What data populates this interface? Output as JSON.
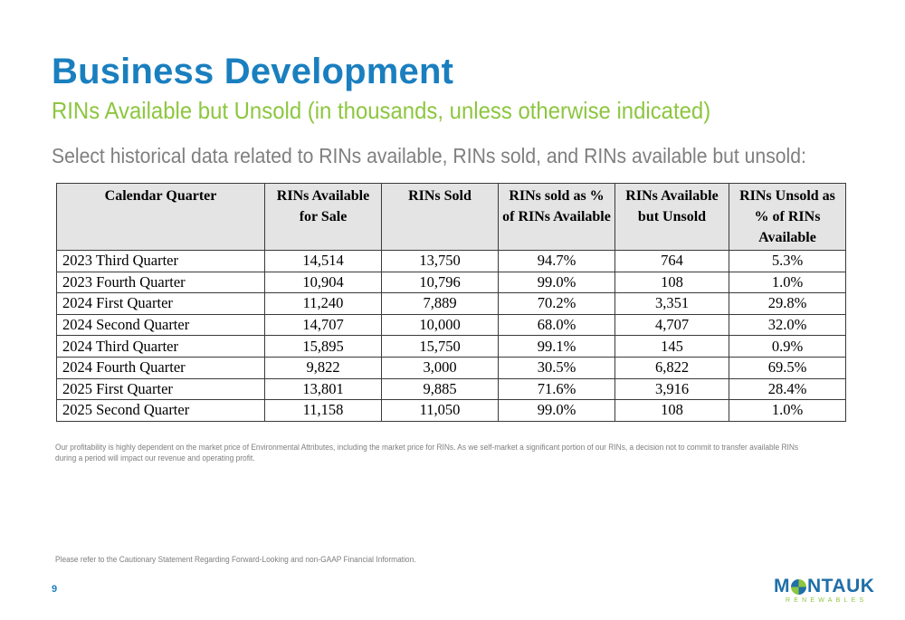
{
  "slide": {
    "title": "Business Development",
    "subtitle": "RINs Available but Unsold (in thousands, unless otherwise indicated)",
    "intro": "Select historical data related to RINs available, RINs sold, and RINs available but unsold:",
    "footnote": "Our profitability is highly dependent on the market price of Environmental Attributes, including the market price for RINs. As we self-market a significant portion of our RINs, a decision not to commit to transfer available RINs during a period will impact our revenue and operating profit.",
    "disclaimer": "Please refer to the Cautionary Statement Regarding Forward-Looking and non-GAAP Financial Information.",
    "page_number": "9"
  },
  "table": {
    "headers": [
      "Calendar Quarter",
      "RINs Available for Sale",
      "RINs Sold",
      "RINs sold as % of RINs Available",
      "RINs Available but Unsold",
      "RINs Unsold as % of RINs Available"
    ],
    "rows": [
      [
        "2023 Third Quarter",
        "14,514",
        "13,750",
        "94.7%",
        "764",
        "5.3%"
      ],
      [
        "2023 Fourth Quarter",
        "10,904",
        "10,796",
        "99.0%",
        "108",
        "1.0%"
      ],
      [
        "2024 First Quarter",
        "11,240",
        "7,889",
        "70.2%",
        "3,351",
        "29.8%"
      ],
      [
        "2024 Second Quarter",
        "14,707",
        "10,000",
        "68.0%",
        "4,707",
        "32.0%"
      ],
      [
        "2024 Third Quarter",
        "15,895",
        "15,750",
        "99.1%",
        "145",
        "0.9%"
      ],
      [
        "2024 Fourth Quarter",
        "9,822",
        "3,000",
        "30.5%",
        "6,822",
        "69.5%"
      ],
      [
        "2025 First Quarter",
        "13,801",
        "9,885",
        "71.6%",
        "3,916",
        "28.4%"
      ],
      [
        "2025 Second Quarter",
        "11,158",
        "11,050",
        "99.0%",
        "108",
        "1.0%"
      ]
    ]
  },
  "logo": {
    "word_left": "M",
    "word_right": "NTAUK",
    "tagline": "RENEWABLES"
  },
  "colors": {
    "title_blue": "#1a7fbf",
    "subtitle_green": "#8dc63f",
    "body_gray": "#7f7f7f",
    "header_fill": "#e4e4e4"
  }
}
